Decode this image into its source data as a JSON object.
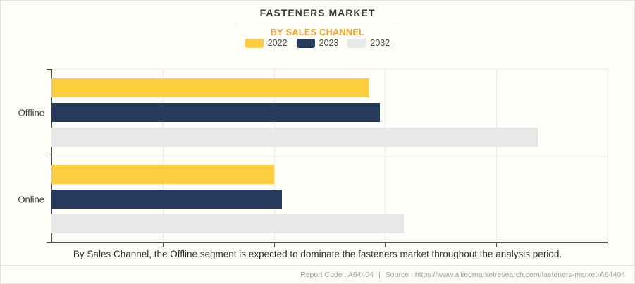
{
  "header": {
    "title": "FASTENERS MARKET",
    "subtitle": "BY SALES CHANNEL"
  },
  "legend": [
    {
      "label": "2022",
      "color": "#FCCE3E"
    },
    {
      "label": "2023",
      "color": "#263A5C"
    },
    {
      "label": "2032",
      "color": "#E8E8E8"
    }
  ],
  "chart_data": {
    "type": "bar",
    "orientation": "horizontal",
    "title": "FASTENERS MARKET",
    "subtitle": "BY SALES CHANNEL",
    "categories": [
      "Offline",
      "Online"
    ],
    "series": [
      {
        "name": "2022",
        "color": "#FCCE3E",
        "values": [
          2.86,
          2.0
        ]
      },
      {
        "name": "2023",
        "color": "#263A5C",
        "values": [
          2.95,
          2.07
        ]
      },
      {
        "name": "2032",
        "color": "#E8E8E8",
        "values": [
          4.37,
          3.17
        ]
      }
    ],
    "xlim": [
      0,
      5
    ],
    "x_tick_labels_visible": false,
    "grid": "vertical",
    "legend_position": "top"
  },
  "caption": "By Sales Channel, the Offline segment is expected to dominate the fasteners market throughout the analysis period.",
  "footer": {
    "report_code": "Report Code : A64404",
    "separator": "|",
    "source": "Source : https://www.alliedmarketresearch.com/fasteners-market-A64404"
  }
}
